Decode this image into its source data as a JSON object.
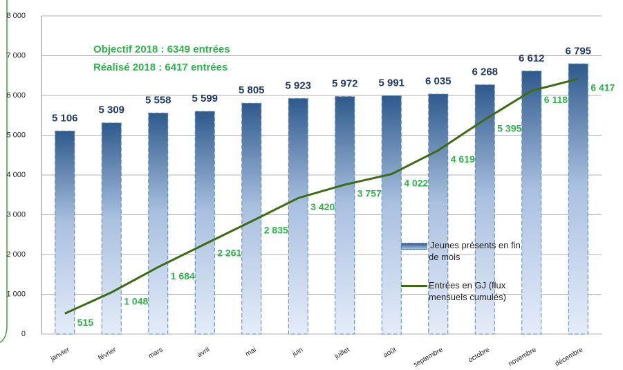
{
  "chart_data": {
    "type": "bar",
    "annotations": [
      "Objectif 2018 : 6349 entrées",
      "Réalisé 2018 : 6417 entrées"
    ],
    "categories": [
      "janvier",
      "février",
      "mars",
      "avril",
      "mai",
      "juin",
      "juillet",
      "août",
      "septembre",
      "octobre",
      "novembre",
      "décembre"
    ],
    "series": [
      {
        "name": "Jeunes présents en fin de mois",
        "type": "bar",
        "color": "#2e5a8c",
        "values": [
          5106,
          5309,
          5558,
          5599,
          5805,
          5923,
          5972,
          5991,
          6035,
          6268,
          6612,
          6795
        ],
        "value_labels": [
          "5 106",
          "5 309",
          "5 558",
          "5 599",
          "5 805",
          "5 923",
          "5 972",
          "5 991",
          "6 035",
          "6 268",
          "6 612",
          "6 795"
        ]
      },
      {
        "name": "Entrées en GJ (flux mensuels cumulés)",
        "type": "line",
        "color": "#3d6b12",
        "values": [
          515,
          1048,
          1684,
          2261,
          2835,
          3420,
          3757,
          4022,
          4619,
          5395,
          6118,
          6417
        ],
        "value_labels": [
          "515",
          "1 048",
          "1 684",
          "2 261",
          "2 835",
          "3 420",
          "3 757",
          "4 022",
          "4 619",
          "5 395",
          "6 118",
          "6 417"
        ]
      }
    ],
    "ylim": [
      0,
      8000
    ],
    "yticks": [
      0,
      {
        "value": 1000,
        "label": "1 000"
      },
      {
        "value": 2000,
        "label": "2 000"
      },
      {
        "value": 3000,
        "label": "3 000"
      },
      {
        "value": 4000,
        "label": "4 000"
      },
      {
        "value": 5000,
        "label": "5 000"
      },
      {
        "value": 6000,
        "label": "6 000"
      },
      {
        "value": 7000,
        "label": "7 000"
      },
      {
        "value": 8000,
        "label": "8 000"
      }
    ],
    "grid": true
  }
}
